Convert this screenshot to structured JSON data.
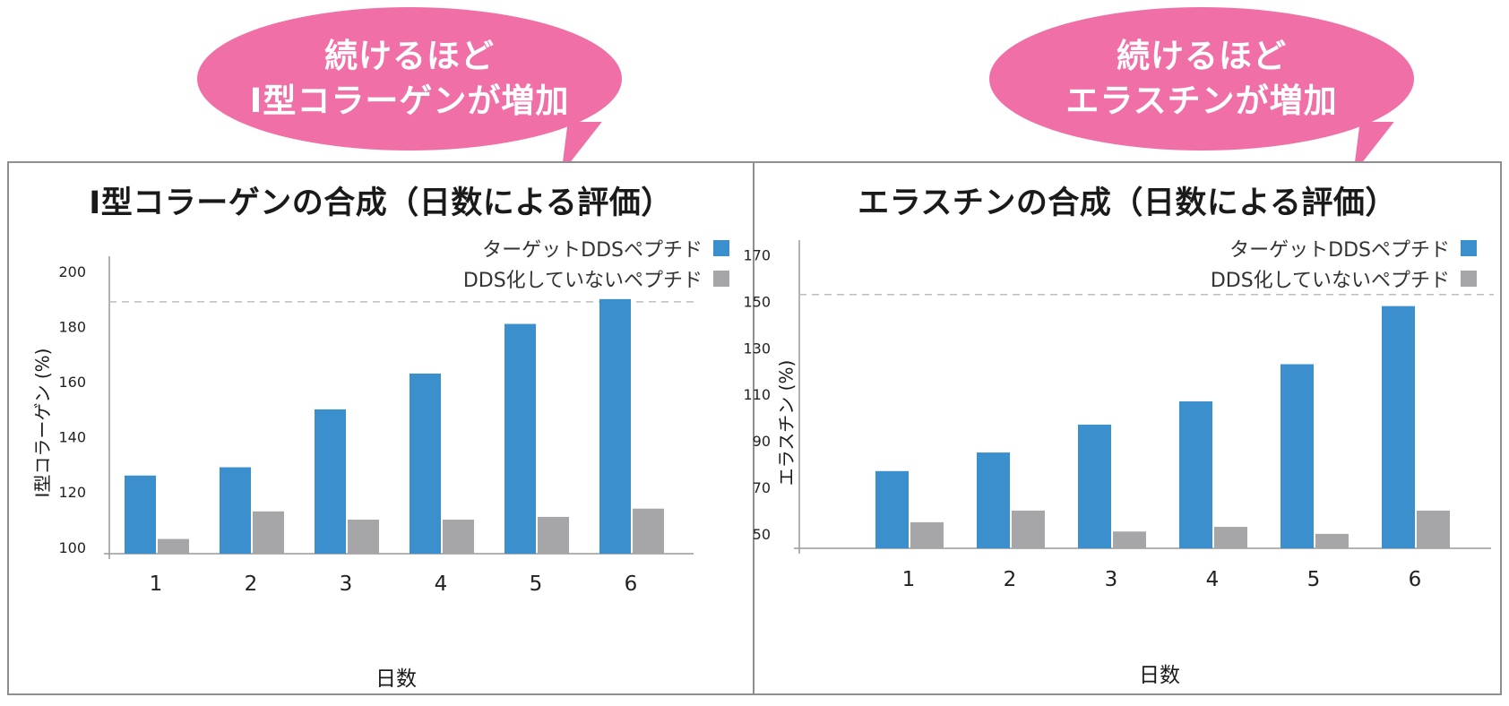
{
  "callouts": [
    {
      "line1": "続けるほど",
      "line2": "Ⅰ型コラーゲンが増加",
      "color": "#f06fa6"
    },
    {
      "line1": "続けるほど",
      "line2": "エラスチンが増加",
      "color": "#f06fa6"
    }
  ],
  "legend": {
    "targeted": "ターゲットDDSペプチド",
    "untargeted": "DDS化していないペプチド",
    "targeted_color": "#3b8fcc",
    "untargeted_color": "#a6a6a8"
  },
  "chart_data": [
    {
      "type": "bar",
      "title": "Ⅰ型コラーゲンの合成（日数による評価）",
      "xlabel": "日数",
      "ylabel": "Ⅰ型コラーゲン (%)",
      "categories": [
        "1",
        "2",
        "3",
        "4",
        "5",
        "6"
      ],
      "yticks": [
        100,
        120,
        140,
        160,
        180,
        200
      ],
      "ylim": [
        97,
        201
      ],
      "reference_line": 189,
      "series": [
        {
          "name": "ターゲットDDSペプチド",
          "color": "#3b8fcc",
          "values": [
            126,
            129,
            150,
            163,
            181,
            190
          ]
        },
        {
          "name": "DDS化していないペプチド",
          "color": "#a6a6a8",
          "values": [
            103,
            113,
            110,
            110,
            111,
            114
          ]
        }
      ]
    },
    {
      "type": "bar",
      "title": "エラスチンの合成（日数による評価）",
      "xlabel": "日数",
      "ylabel": "エラスチン (%)",
      "categories": [
        "1",
        "2",
        "3",
        "4",
        "5",
        "6"
      ],
      "yticks": [
        50,
        70,
        90,
        110,
        130,
        150,
        170
      ],
      "ylim": [
        43,
        171
      ],
      "reference_line": 153,
      "series": [
        {
          "name": "ターゲットDDSペプチド",
          "color": "#3b8fcc",
          "values": [
            77,
            85,
            97,
            107,
            123,
            148
          ]
        },
        {
          "name": "DDS化していないペプチド",
          "color": "#a6a6a8",
          "values": [
            55,
            60,
            51,
            53,
            50,
            60
          ]
        }
      ]
    }
  ]
}
